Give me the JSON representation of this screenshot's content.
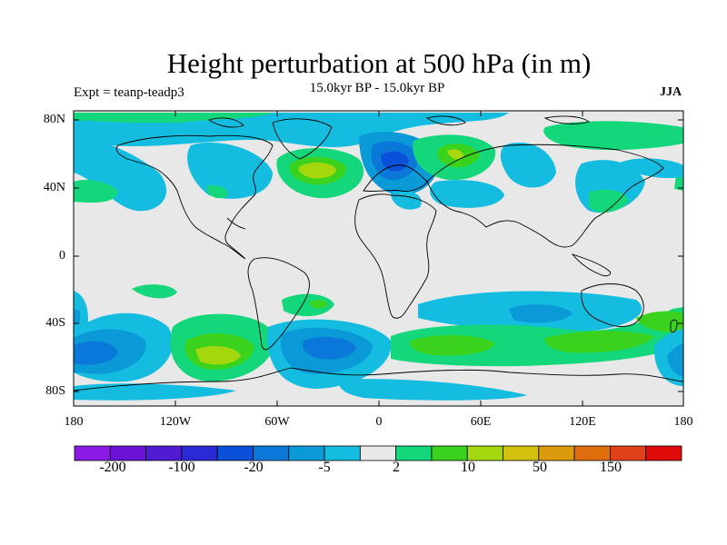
{
  "plot": {
    "title": "Height perturbation at 500 hPa (in m)",
    "subtitle": "15.0kyr BP - 15.0kyr BP",
    "left_label": "Expt = teanp-teadp3",
    "right_label": "JJA",
    "background_color": "#e8e8e8",
    "coastline_color": "#000000"
  },
  "axes": {
    "y_ticks": [
      "80N",
      "40N",
      "0",
      "40S",
      "80S"
    ],
    "x_ticks": [
      "180",
      "120W",
      "60W",
      "0",
      "60E",
      "120E",
      "180"
    ]
  },
  "colorbar": {
    "colors": [
      "#8a1be6",
      "#6a12d6",
      "#4f1cd3",
      "#2a2ad7",
      "#0a50d8",
      "#0a78d8",
      "#0a9ad8",
      "#14bde0",
      "#e8e8e8",
      "#14d67a",
      "#3ad21c",
      "#a5d70f",
      "#d2c10e",
      "#db9b0c",
      "#de6f0c",
      "#e0411a",
      "#e00a0a"
    ],
    "labels": [
      "-200",
      "-100",
      "-20",
      "-5",
      "2",
      "10",
      "50",
      "150"
    ]
  }
}
